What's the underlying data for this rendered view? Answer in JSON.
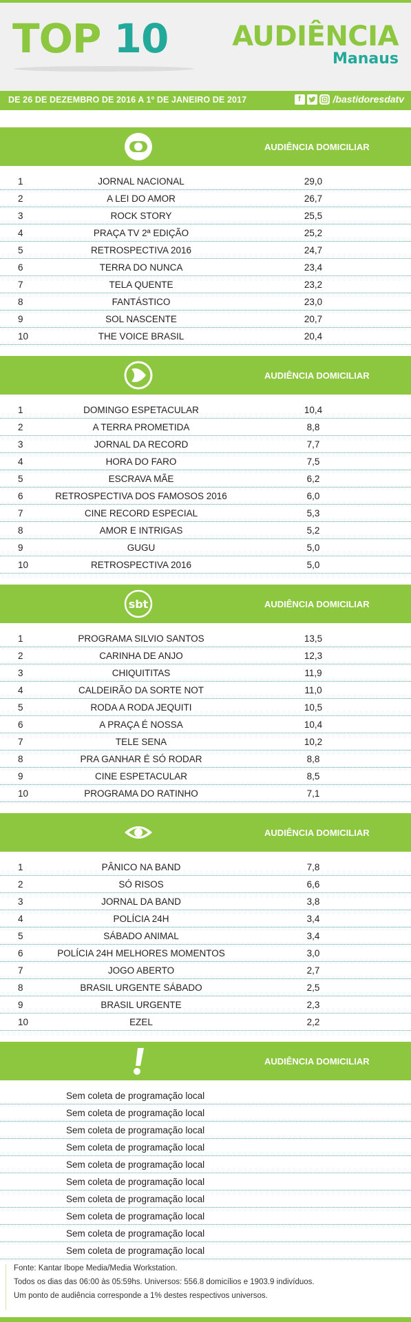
{
  "header": {
    "top_word": "TOP",
    "ten_word": "10",
    "audiencia": "AUDIÊNCIA",
    "city": "Manaus",
    "dates": "DE 26 DE DEZEMBRO DE 2016 A 1º DE JANEIRO DE 2017",
    "social_icons": [
      "facebook-icon",
      "twitter-icon",
      "instagram-icon"
    ],
    "handle": "/bastidoresdatv"
  },
  "colors": {
    "green": "#8dc63f",
    "teal": "#23a99a"
  },
  "sections": [
    {
      "channel_icon": "globo-icon",
      "label": "AUDIÊNCIA DOMICILIAR",
      "rows": [
        {
          "rank": "1",
          "program": "JORNAL NACIONAL",
          "value": "29,0"
        },
        {
          "rank": "2",
          "program": "A LEI DO AMOR",
          "value": "26,7"
        },
        {
          "rank": "3",
          "program": "ROCK STORY",
          "value": "25,5"
        },
        {
          "rank": "4",
          "program": "PRAÇA TV 2ª EDIÇÃO",
          "value": "25,2"
        },
        {
          "rank": "5",
          "program": "RETROSPECTIVA 2016",
          "value": "24,7"
        },
        {
          "rank": "6",
          "program": "TERRA DO NUNCA",
          "value": "23,4"
        },
        {
          "rank": "7",
          "program": "TELA QUENTE",
          "value": "23,2"
        },
        {
          "rank": "8",
          "program": "FANTÁSTICO",
          "value": "23,0"
        },
        {
          "rank": "9",
          "program": "SOL NASCENTE",
          "value": "20,7"
        },
        {
          "rank": "10",
          "program": "THE VOICE BRASIL",
          "value": "20,4"
        }
      ]
    },
    {
      "channel_icon": "record-icon",
      "label": "AUDIÊNCIA DOMICILIAR",
      "rows": [
        {
          "rank": "1",
          "program": "DOMINGO ESPETACULAR",
          "value": "10,4"
        },
        {
          "rank": "2",
          "program": "A TERRA PROMETIDA",
          "value": "8,8"
        },
        {
          "rank": "3",
          "program": "JORNAL DA RECORD",
          "value": "7,7"
        },
        {
          "rank": "4",
          "program": "HORA DO FARO",
          "value": "7,5"
        },
        {
          "rank": "5",
          "program": "ESCRAVA MÃE",
          "value": "6,2"
        },
        {
          "rank": "6",
          "program": "RETROSPECTIVA DOS FAMOSOS 2016",
          "value": "6,0"
        },
        {
          "rank": "7",
          "program": "CINE RECORD ESPECIAL",
          "value": "5,3"
        },
        {
          "rank": "8",
          "program": "AMOR E INTRIGAS",
          "value": "5,2"
        },
        {
          "rank": "9",
          "program": "GUGU",
          "value": "5,0"
        },
        {
          "rank": "10",
          "program": "RETROSPECTIVA 2016",
          "value": "5,0"
        }
      ]
    },
    {
      "channel_icon": "sbt-icon",
      "channel_logo_text": "sbt",
      "label": "AUDIÊNCIA DOMICILIAR",
      "rows": [
        {
          "rank": "1",
          "program": "PROGRAMA SILVIO SANTOS",
          "value": "13,5"
        },
        {
          "rank": "2",
          "program": "CARINHA DE ANJO",
          "value": "12,3"
        },
        {
          "rank": "3",
          "program": "CHIQUITITAS",
          "value": "11,9"
        },
        {
          "rank": "4",
          "program": "CALDEIRÃO DA SORTE NOT",
          "value": "11,0"
        },
        {
          "rank": "5",
          "program": "RODA A RODA JEQUITI",
          "value": "10,5"
        },
        {
          "rank": "6",
          "program": "A PRAÇA É NOSSA",
          "value": "10,4"
        },
        {
          "rank": "7",
          "program": "TELE SENA",
          "value": "10,2"
        },
        {
          "rank": "8",
          "program": "PRA GANHAR É SÓ RODAR",
          "value": "8,8"
        },
        {
          "rank": "9",
          "program": "CINE ESPETACULAR",
          "value": "8,5"
        },
        {
          "rank": "10",
          "program": "PROGRAMA DO RATINHO",
          "value": "7,1"
        }
      ]
    },
    {
      "channel_icon": "band-icon",
      "label": "AUDIÊNCIA DOMICILIAR",
      "rows": [
        {
          "rank": "1",
          "program": "PÂNICO NA BAND",
          "value": "7,8"
        },
        {
          "rank": "2",
          "program": "SÓ RISOS",
          "value": "6,6"
        },
        {
          "rank": "3",
          "program": "JORNAL DA BAND",
          "value": "3,8"
        },
        {
          "rank": "4",
          "program": "POLÍCIA 24H",
          "value": "3,4"
        },
        {
          "rank": "5",
          "program": "SÁBADO ANIMAL",
          "value": "3,4"
        },
        {
          "rank": "6",
          "program": "POLÍCIA 24H MELHORES MOMENTOS",
          "value": "3,0"
        },
        {
          "rank": "7",
          "program": "JOGO ABERTO",
          "value": "2,7"
        },
        {
          "rank": "8",
          "program": "BRASIL URGENTE SÁBADO",
          "value": "2,5"
        },
        {
          "rank": "9",
          "program": "BRASIL URGENTE",
          "value": "2,3"
        },
        {
          "rank": "10",
          "program": "EZEL",
          "value": "2,2"
        }
      ]
    },
    {
      "channel_icon": "redetv-icon",
      "label": "AUDIÊNCIA DOMICILIAR",
      "rows": [
        {
          "text": "Sem coleta de programação local"
        },
        {
          "text": "Sem coleta de programação local"
        },
        {
          "text": "Sem coleta de programação local"
        },
        {
          "text": "Sem coleta de programação local"
        },
        {
          "text": "Sem coleta de programação local"
        },
        {
          "text": "Sem coleta de programação local"
        },
        {
          "text": "Sem coleta de programação local"
        },
        {
          "text": "Sem coleta de programação local"
        },
        {
          "text": "Sem coleta de programação local"
        },
        {
          "text": "Sem coleta de programação local"
        }
      ]
    }
  ],
  "footer": {
    "line1": "Fonte: Kantar Ibope Media/Media Workstation.",
    "line2": "Todos os dias das 06:00 às 05:59hs. Universos: 556.8 domicílios e 1903.9 indivíduos.",
    "line3": "Um ponto de audiência corresponde a 1% destes respectivos universos."
  }
}
